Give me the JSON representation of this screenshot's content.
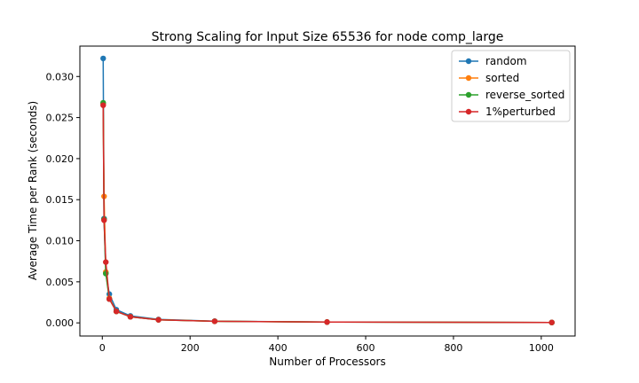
{
  "chart_data": {
    "type": "line",
    "title": "Strong Scaling for Input Size 65536 for node comp_large",
    "xlabel": "Number of Processors",
    "ylabel": "Average Time per Rank (seconds)",
    "xlim": [
      -51.1,
      1077.1
    ],
    "ylim": [
      -0.0016,
      0.0337
    ],
    "xticks": [
      0,
      200,
      400,
      600,
      800,
      1000
    ],
    "xtick_labels": [
      "0",
      "200",
      "400",
      "600",
      "800",
      "1000"
    ],
    "yticks": [
      0.0,
      0.005,
      0.01,
      0.015,
      0.02,
      0.025,
      0.03
    ],
    "ytick_labels": [
      "0.000",
      "0.005",
      "0.010",
      "0.015",
      "0.020",
      "0.025",
      "0.030"
    ],
    "grid": false,
    "legend_position": "top-right",
    "x": [
      2,
      4,
      8,
      16,
      32,
      64,
      128,
      256,
      512,
      1024
    ],
    "series": [
      {
        "name": "random",
        "color": "#1f77b4",
        "values": [
          0.0322,
          0.0127,
          0.0061,
          0.0035,
          0.0016,
          0.00085,
          0.00042,
          0.00021,
          0.0001,
          5e-05
        ]
      },
      {
        "name": "sorted",
        "color": "#ff7f0e",
        "values": [
          0.0267,
          0.0154,
          0.0062,
          0.003,
          0.0014,
          0.00075,
          0.00038,
          0.00019,
          0.0001,
          5e-05
        ]
      },
      {
        "name": "reverse_sorted",
        "color": "#2ca02c",
        "values": [
          0.0268,
          0.0126,
          0.006,
          0.0029,
          0.0014,
          0.00074,
          0.00037,
          0.00019,
          0.0001,
          5e-05
        ]
      },
      {
        "name": "1%perturbed",
        "color": "#d62728",
        "values": [
          0.0265,
          0.0125,
          0.0074,
          0.0029,
          0.0014,
          0.00074,
          0.00037,
          0.00019,
          0.0001,
          5e-05
        ]
      }
    ]
  }
}
